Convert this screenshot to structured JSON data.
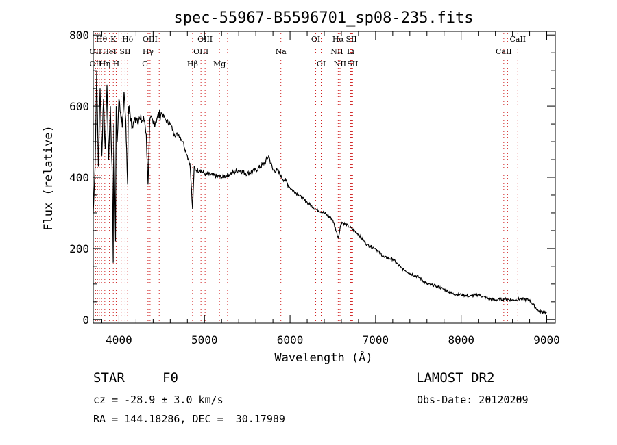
{
  "chart_data": {
    "type": "line",
    "title": "spec-55967-B5596701_sp08-235.fits",
    "xlabel": "Wavelength (Å)",
    "ylabel": "Flux (relative)",
    "xlim": [
      3700,
      9100
    ],
    "ylim": [
      -10,
      810
    ],
    "xticks": [
      4000,
      5000,
      6000,
      7000,
      8000,
      9000
    ],
    "yticks": [
      0,
      200,
      400,
      600,
      800
    ],
    "series": [
      {
        "name": "spectrum",
        "x": [
          3700,
          3720,
          3740,
          3760,
          3780,
          3800,
          3820,
          3840,
          3860,
          3880,
          3900,
          3920,
          3933,
          3940,
          3960,
          3968,
          3980,
          4000,
          4020,
          4040,
          4060,
          4080,
          4101,
          4110,
          4130,
          4150,
          4200,
          4250,
          4300,
          4320,
          4340,
          4360,
          4400,
          4450,
          4500,
          4550,
          4600,
          4650,
          4700,
          4750,
          4800,
          4830,
          4861,
          4880,
          4900,
          4950,
          5000,
          5100,
          5200,
          5300,
          5400,
          5500,
          5600,
          5700,
          5750,
          5800,
          5850,
          5900,
          5950,
          6000,
          6100,
          6200,
          6300,
          6400,
          6500,
          6563,
          6600,
          6700,
          6800,
          6900,
          7000,
          7100,
          7200,
          7300,
          7400,
          7500,
          7600,
          7700,
          7800,
          7900,
          8000,
          8100,
          8200,
          8300,
          8400,
          8500,
          8600,
          8700,
          8800,
          8900,
          9000
        ],
        "y": [
          300,
          420,
          700,
          430,
          650,
          460,
          620,
          480,
          660,
          450,
          600,
          430,
          160,
          550,
          220,
          600,
          500,
          620,
          580,
          540,
          640,
          560,
          380,
          600,
          580,
          540,
          570,
          560,
          560,
          520,
          380,
          560,
          550,
          570,
          580,
          560,
          550,
          520,
          520,
          500,
          460,
          440,
          310,
          430,
          420,
          420,
          410,
          405,
          400,
          410,
          420,
          410,
          420,
          440,
          460,
          420,
          420,
          400,
          390,
          370,
          350,
          330,
          310,
          300,
          280,
          230,
          275,
          260,
          240,
          210,
          200,
          175,
          170,
          145,
          130,
          120,
          100,
          95,
          85,
          72,
          70,
          65,
          70,
          60,
          55,
          58,
          55,
          58,
          55,
          25,
          20
        ]
      }
    ],
    "spectral_lines": [
      {
        "label": "Hθ",
        "wl": 3797,
        "row": 0
      },
      {
        "label": "K",
        "wl": 3934,
        "row": 0
      },
      {
        "label": "Hδ",
        "wl": 4102,
        "row": 0
      },
      {
        "label": "OIII",
        "wl": 4364,
        "row": 0
      },
      {
        "label": "OIII",
        "wl": 5007,
        "row": 0
      },
      {
        "label": "OI",
        "wl": 6300,
        "row": 0
      },
      {
        "label": "Hα",
        "wl": 6563,
        "row": 0
      },
      {
        "label": "SII",
        "wl": 6717,
        "row": 0
      },
      {
        "label": "CaII",
        "wl": 8662,
        "row": 0
      },
      {
        "label": "OII",
        "wl": 3727,
        "row": 1
      },
      {
        "label": "HeI",
        "wl": 3889,
        "row": 1
      },
      {
        "label": "SII",
        "wl": 4072,
        "row": 1
      },
      {
        "label": "Hγ",
        "wl": 4341,
        "row": 1
      },
      {
        "label": "OIII",
        "wl": 4959,
        "row": 1
      },
      {
        "label": "Na",
        "wl": 5893,
        "row": 1
      },
      {
        "label": "NII",
        "wl": 6548,
        "row": 1
      },
      {
        "label": "Li",
        "wl": 6708,
        "row": 1
      },
      {
        "label": "CaII",
        "wl": 8498,
        "row": 1
      },
      {
        "label": "OII",
        "wl": 3727,
        "row": 2
      },
      {
        "label": "Hη",
        "wl": 3835,
        "row": 2
      },
      {
        "label": "H",
        "wl": 3968,
        "row": 2
      },
      {
        "label": "G",
        "wl": 4305,
        "row": 2
      },
      {
        "label": "Hβ",
        "wl": 4861,
        "row": 2
      },
      {
        "label": "Mg",
        "wl": 5175,
        "row": 2
      },
      {
        "label": "OI",
        "wl": 6364,
        "row": 2
      },
      {
        "label": "NII",
        "wl": 6584,
        "row": 2
      },
      {
        "label": "SII",
        "wl": 6731,
        "row": 2
      }
    ],
    "extra_line_wavelengths": [
      3750,
      3771,
      3889,
      4026,
      4340,
      4471,
      5270,
      8542
    ]
  },
  "info": {
    "object_class": "STAR",
    "subclass": "F0",
    "survey": "LAMOST DR2",
    "cz": "cz = -28.9 ± 3.0 km/s",
    "obs_date": "Obs-Date: 20120209",
    "coords": "RA = 144.18286, DEC =  30.17989"
  },
  "colors": {
    "line_marker": "#d02020",
    "spectrum": "#000000",
    "axes": "#000000"
  }
}
